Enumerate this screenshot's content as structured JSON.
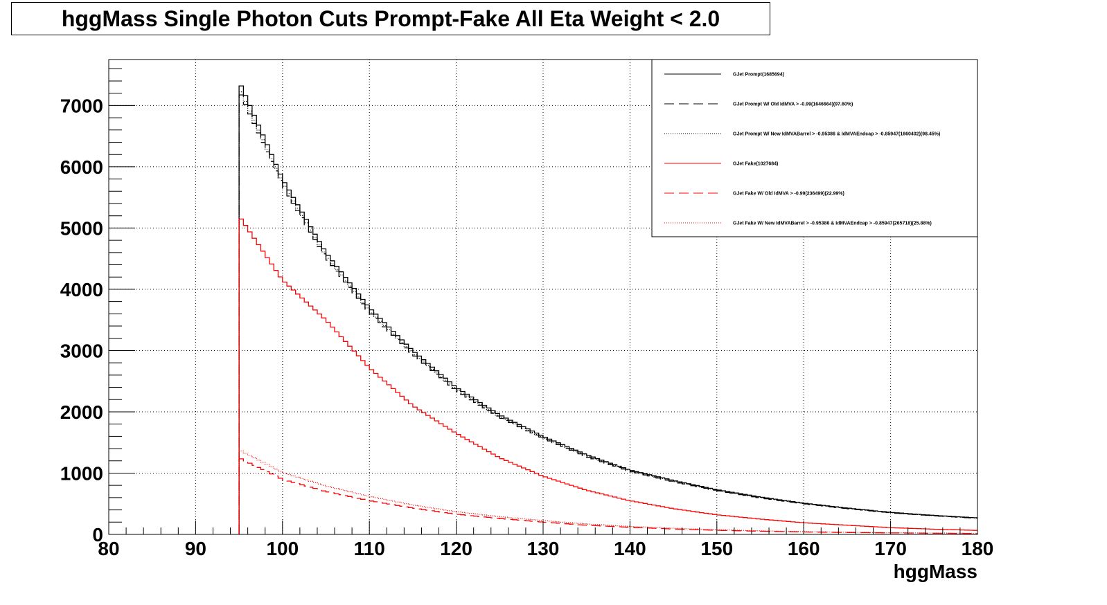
{
  "title": "hggMass Single Photon Cuts Prompt-Fake All Eta Weight < 2.0",
  "chart_data": {
    "type": "line",
    "style": "step-histogram",
    "title": "hggMass Single Photon Cuts Prompt-Fake All Eta Weight < 2.0",
    "xlabel": "hggMass",
    "ylabel": "",
    "xlim": [
      80,
      180
    ],
    "ylim": [
      0,
      7750
    ],
    "grid": true,
    "legend_position": "top-right",
    "x_ticks": [
      80,
      90,
      100,
      110,
      120,
      130,
      140,
      150,
      160,
      170,
      180
    ],
    "y_ticks": [
      0,
      1000,
      2000,
      3000,
      4000,
      5000,
      6000,
      7000
    ],
    "x_tick_labels": [
      "80",
      "90",
      "100",
      "110",
      "120",
      "130",
      "140",
      "150",
      "160",
      "170",
      "180"
    ],
    "y_tick_labels": [
      "0",
      "1000",
      "2000",
      "3000",
      "4000",
      "5000",
      "6000",
      "7000"
    ],
    "x": [
      95,
      100,
      105,
      110,
      115,
      120,
      125,
      130,
      135,
      140,
      145,
      150,
      155,
      160,
      165,
      170,
      175,
      180
    ],
    "series": [
      {
        "name": "GJet Prompt(1685694)",
        "color": "#000000",
        "dash": "solid",
        "values": [
          7400,
          5800,
          4600,
          3700,
          3000,
          2400,
          1950,
          1600,
          1300,
          1050,
          880,
          730,
          610,
          510,
          430,
          360,
          310,
          270
        ]
      },
      {
        "name": "GJet Prompt W/ Old IdMVA > -0.99(1646664)(97.60%)",
        "color": "#000000",
        "dash": "dashed",
        "values": [
          7250,
          5700,
          4520,
          3630,
          2940,
          2350,
          1910,
          1570,
          1270,
          1030,
          860,
          715,
          595,
          500,
          420,
          352,
          303,
          264
        ]
      },
      {
        "name": "GJet Prompt W/ New IdMVABarrel > -0.95386 & IdMVAEndcap > -0.85947(1660402)(98.45%)",
        "color": "#000000",
        "dash": "dotted",
        "values": [
          7300,
          5740,
          4550,
          3650,
          2960,
          2370,
          1925,
          1580,
          1285,
          1040,
          868,
          720,
          601,
          505,
          425,
          355,
          306,
          266
        ]
      },
      {
        "name": "GJet Fake(1027684)",
        "color": "#ff0000",
        "dash": "solid",
        "values": [
          5200,
          4150,
          3500,
          2720,
          2100,
          1650,
          1250,
          950,
          720,
          550,
          420,
          320,
          250,
          190,
          150,
          110,
          85,
          65
        ]
      },
      {
        "name": "GJet Fake W/ Old IdMVA > -0.99(236499)(22.99%)",
        "color": "#ff0000",
        "dash": "dashed",
        "values": [
          1250,
          900,
          700,
          550,
          430,
          330,
          260,
          200,
          150,
          115,
          88,
          67,
          52,
          40,
          31,
          24,
          19,
          15
        ]
      },
      {
        "name": "GJet Fake W/ New IdMVABarrel > -0.95386 & IdMVAEndcap > -0.85947(265718)(25.88%)",
        "color": "#ff0000",
        "dash": "dotted",
        "values": [
          1380,
          1010,
          790,
          620,
          480,
          370,
          290,
          225,
          170,
          130,
          100,
          76,
          58,
          45,
          35,
          27,
          21,
          17
        ]
      }
    ]
  }
}
